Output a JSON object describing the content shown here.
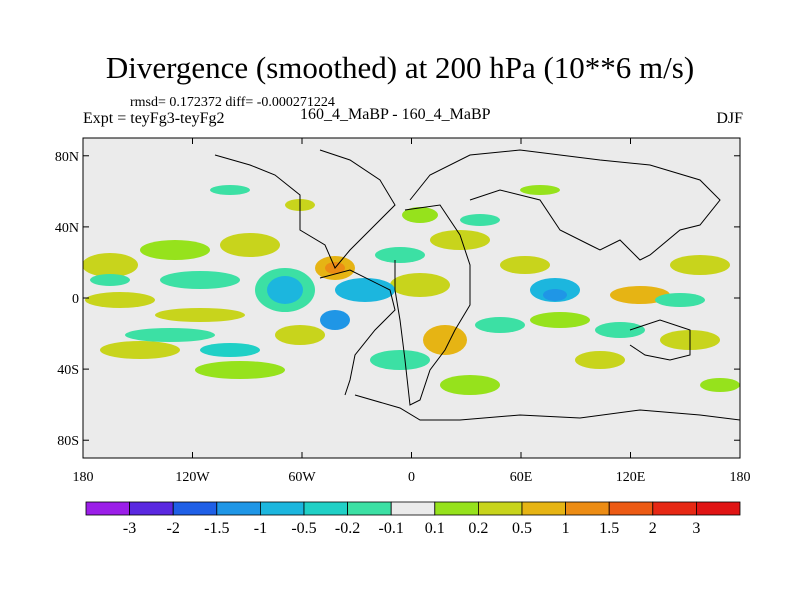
{
  "title": "Divergence (smoothed) at 200 hPa (10**6 m/s)",
  "stats": "rmsd= 0.172372 diff= -0.000271224",
  "expt": "Expt = teyFg3-teyFg2",
  "center_label": "160_4_MaBP - 160_4_MaBP",
  "season": "DJF",
  "chart_data": {
    "type": "heatmap",
    "map_projection": "cylindrical equidistant",
    "field": "Divergence (smoothed) difference at 200 hPa",
    "units": "10**6 m/s",
    "lon_range": [
      -180,
      180
    ],
    "lat_range": [
      -90,
      90
    ],
    "x_ticks": [
      {
        "value": -180,
        "label": "180"
      },
      {
        "value": -120,
        "label": "120W"
      },
      {
        "value": -60,
        "label": "60W"
      },
      {
        "value": 0,
        "label": "0"
      },
      {
        "value": 60,
        "label": "60E"
      },
      {
        "value": 120,
        "label": "120E"
      },
      {
        "value": 180,
        "label": "180"
      }
    ],
    "y_ticks": [
      {
        "value": 80,
        "label": "80N"
      },
      {
        "value": 40,
        "label": "40N"
      },
      {
        "value": 0,
        "label": "0"
      },
      {
        "value": -40,
        "label": "40S"
      },
      {
        "value": -80,
        "label": "80S"
      }
    ],
    "colorbar": {
      "labels": [
        "-3",
        "-2",
        "-1.5",
        "-1",
        "-0.5",
        "-0.2",
        "-0.1",
        "0.1",
        "0.2",
        "0.5",
        "1",
        "1.5",
        "2",
        "3"
      ],
      "colors": [
        "#9b1ee8",
        "#5a28e0",
        "#1f5fe6",
        "#1f96e6",
        "#1cb6de",
        "#20d0c6",
        "#3ce0a4",
        "#ebebeb",
        "#96e21c",
        "#c8d41c",
        "#e6b414",
        "#ec8c14",
        "#ec5a14",
        "#e62814",
        "#e01414"
      ]
    },
    "background_color": "#ebebeb"
  }
}
